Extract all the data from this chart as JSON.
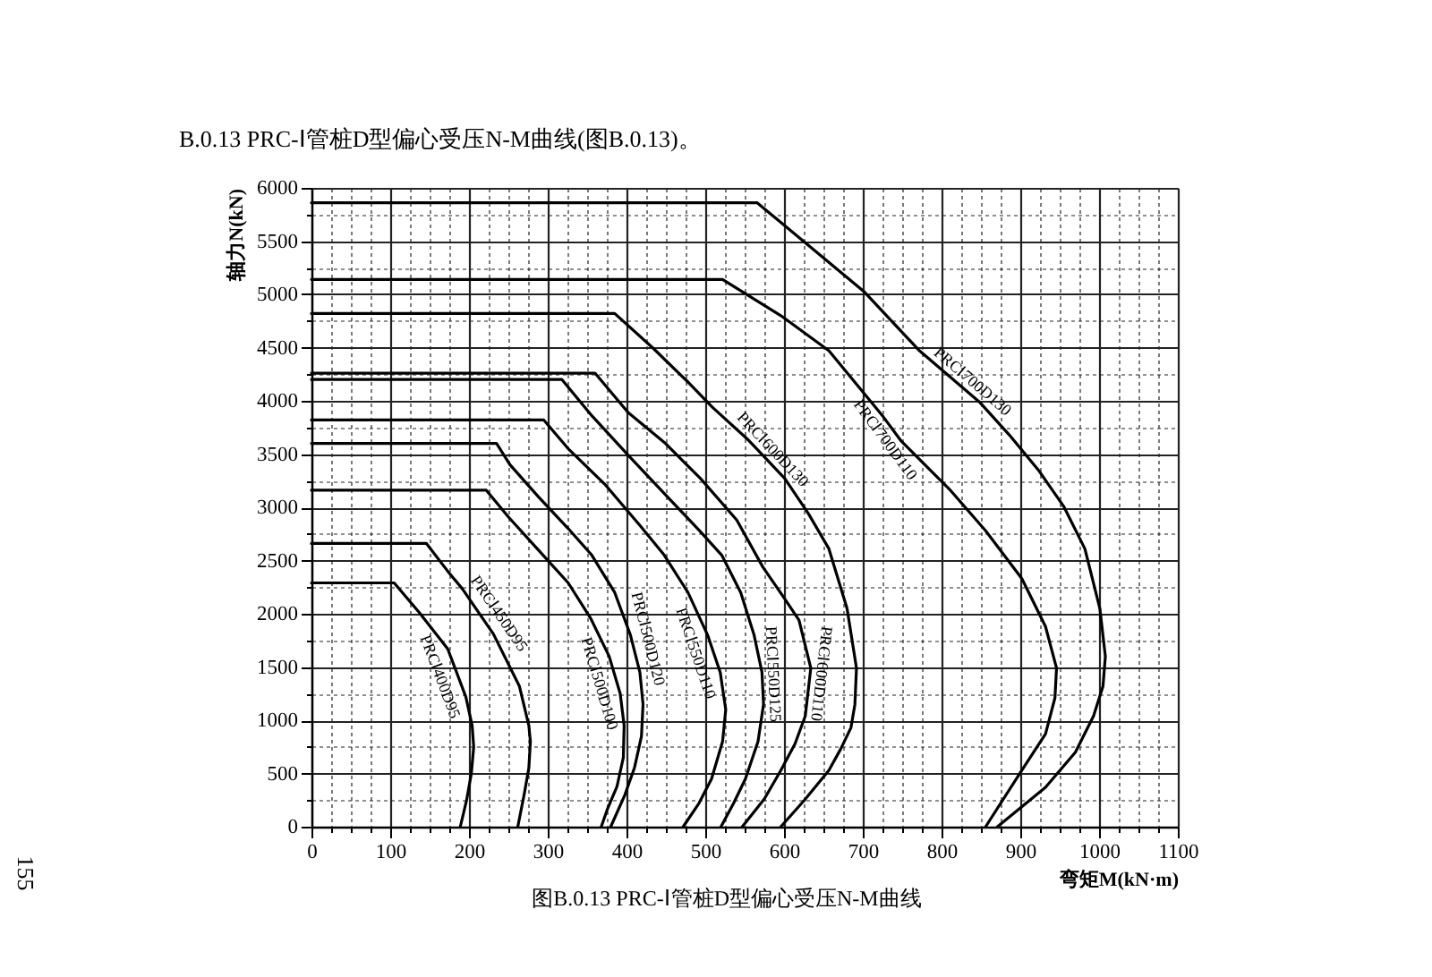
{
  "chart_data": {
    "type": "line",
    "title": "B.0.13 PRC-Ⅰ管桩D型偏心受压N-M曲线(图B.0.13)。",
    "xlabel": "弯矩M(kN·m)",
    "ylabel": "轴力N(kN)",
    "annotations": [
      "图B.0.13 PRC-Ⅰ管桩D型偏心受压N-M曲线",
      "155"
    ],
    "xlim": [
      0,
      1100
    ],
    "ylim": [
      0,
      6000
    ],
    "xticks": [
      0,
      {
        "value": 25,
        "label": null
      },
      {
        "value": 50,
        "label": null
      },
      {
        "value": 75,
        "label": null
      },
      100,
      {
        "value": 125,
        "label": null
      },
      {
        "value": 150,
        "label": null
      },
      {
        "value": 175,
        "label": null
      },
      200,
      {
        "value": 225,
        "label": null
      },
      {
        "value": 250,
        "label": null
      },
      {
        "value": 275,
        "label": null
      },
      300,
      {
        "value": 325,
        "label": null
      },
      {
        "value": 350,
        "label": null
      },
      {
        "value": 375,
        "label": null
      },
      400,
      {
        "value": 425,
        "label": null
      },
      {
        "value": 450,
        "label": null
      },
      {
        "value": 475,
        "label": null
      },
      500,
      {
        "value": 525,
        "label": null
      },
      {
        "value": 550,
        "label": null
      },
      {
        "value": 575,
        "label": null
      },
      600,
      {
        "value": 625,
        "label": null
      },
      {
        "value": 650,
        "label": null
      },
      {
        "value": 675,
        "label": null
      },
      700,
      {
        "value": 725,
        "label": null
      },
      {
        "value": 750,
        "label": null
      },
      {
        "value": 775,
        "label": null
      },
      800,
      {
        "value": 825,
        "label": null
      },
      {
        "value": 850,
        "label": null
      },
      {
        "value": 875,
        "label": null
      },
      900,
      {
        "value": 925,
        "label": null
      },
      {
        "value": 950,
        "label": null
      },
      {
        "value": 975,
        "label": null
      },
      1000,
      {
        "value": 1025,
        "label": null
      },
      {
        "value": 1050,
        "label": null
      },
      {
        "value": 1075,
        "label": null
      },
      1100
    ],
    "yticks": [
      0,
      {
        "value": 250,
        "label": null
      },
      500,
      {
        "value": 750,
        "label": null
      },
      1000,
      {
        "value": 1250,
        "label": null
      },
      1500,
      {
        "value": 1750,
        "label": null
      },
      2000,
      {
        "value": 2250,
        "label": null
      },
      2500,
      {
        "value": 2750,
        "label": null
      },
      3000,
      {
        "value": 3250,
        "label": null
      },
      3500,
      {
        "value": 3750,
        "label": null
      },
      4000,
      {
        "value": 4250,
        "label": null
      },
      4500,
      {
        "value": 4750,
        "label": null
      },
      5000,
      {
        "value": 5250,
        "label": null
      },
      5500,
      {
        "value": 5750,
        "label": null
      },
      6000
    ],
    "grid": true,
    "series": [
      {
        "name": "PRCⅠ400D95",
        "color": "#000000",
        "x": [
          0,
          105,
          137,
          173,
          196,
          204,
          206,
          203,
          197,
          189
        ],
        "values": [
          2290,
          2290,
          2010,
          1670,
          1220,
          950,
          750,
          500,
          250,
          0
        ]
      },
      {
        "name": "PRCⅠ450D95",
        "color": "#000000",
        "x": [
          0,
          146,
          173,
          192,
          231,
          264,
          276,
          278,
          276,
          270,
          262
        ],
        "values": [
          2660,
          2660,
          2400,
          2230,
          1810,
          1320,
          950,
          800,
          550,
          300,
          0
        ]
      },
      {
        "name": "PRCⅠ500D100",
        "color": "#000000",
        "x": [
          0,
          222,
          250,
          288,
          326,
          355,
          378,
          392,
          397,
          396,
          388,
          376,
          368
        ],
        "values": [
          3160,
          3160,
          2910,
          2600,
          2290,
          1950,
          1600,
          1250,
          950,
          650,
          380,
          170,
          0
        ]
      },
      {
        "name": "PRCⅠ500D120",
        "color": "#000000",
        "x": [
          0,
          235,
          252,
          288,
          326,
          356,
          385,
          405,
          417,
          421,
          419,
          410,
          398,
          380
        ],
        "values": [
          3600,
          3600,
          3400,
          3100,
          2800,
          2550,
          2200,
          1800,
          1450,
          1150,
          850,
          550,
          300,
          0
        ]
      },
      {
        "name": "PRCⅠ550D110",
        "color": "#000000",
        "x": [
          0,
          295,
          326,
          372,
          417,
          448,
          478,
          503,
          519,
          526,
          522,
          508,
          492,
          472
        ],
        "values": [
          3820,
          3820,
          3550,
          3220,
          2830,
          2550,
          2200,
          1800,
          1450,
          1100,
          800,
          450,
          220,
          0
        ]
      },
      {
        "name": "PRCⅠ550D125",
        "color": "#000000",
        "x": [
          0,
          318,
          356,
          402,
          448,
          494,
          521,
          545,
          562,
          572,
          574,
          567,
          551,
          536,
          520
        ],
        "values": [
          4200,
          4200,
          3860,
          3490,
          3130,
          2770,
          2550,
          2200,
          1800,
          1450,
          1150,
          800,
          450,
          220,
          0
        ]
      },
      {
        "name": "PRCⅠ600D110",
        "color": "#000000",
        "x": [
          0,
          360,
          402,
          448,
          494,
          540,
          573,
          600,
          619,
          634,
          627,
          614,
          596,
          575,
          547
        ],
        "values": [
          4260,
          4260,
          3890,
          3610,
          3270,
          2880,
          2440,
          2150,
          1940,
          1490,
          1040,
          780,
          530,
          260,
          0
        ]
      },
      {
        "name": "PRCⅠ600D130",
        "color": "#000000",
        "x": [
          0,
          385,
          433,
          479,
          509,
          555,
          601,
          631,
          657,
          680,
          692,
          690,
          685,
          672,
          657,
          626,
          596
        ],
        "values": [
          4820,
          4820,
          4500,
          4170,
          3940,
          3630,
          3270,
          2940,
          2610,
          2050,
          1490,
          1150,
          930,
          730,
          530,
          250,
          0
        ]
      },
      {
        "name": "PRCⅠ700D110",
        "color": "#000000",
        "x": [
          0,
          522,
          596,
          657,
          726,
          749,
          810,
          856,
          902,
          932,
          946,
          944,
          932,
          902,
          856
        ],
        "values": [
          5140,
          5140,
          4800,
          4470,
          3850,
          3620,
          3170,
          2780,
          2330,
          1880,
          1490,
          1210,
          870,
          530,
          0
        ]
      },
      {
        "name": "PRCⅠ700D130",
        "color": "#000000",
        "x": [
          0,
          566,
          701,
          772,
          848,
          886,
          924,
          955,
          982,
          1001,
          1008,
          1005,
          993,
          970,
          932,
          871
        ],
        "values": [
          5860,
          5860,
          5030,
          4470,
          3990,
          3680,
          3340,
          3010,
          2610,
          2050,
          1600,
          1320,
          1040,
          700,
          370,
          0
        ]
      }
    ]
  }
}
